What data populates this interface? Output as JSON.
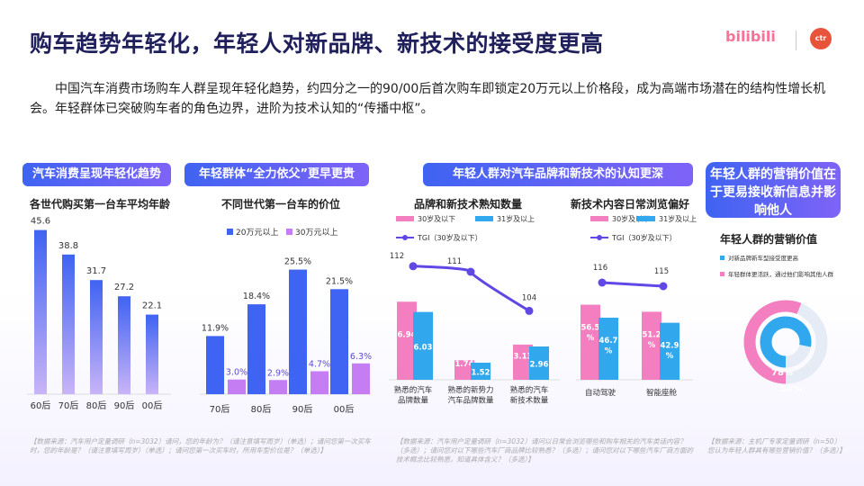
{
  "title": "购车趋势年轻化，年轻人对新品牌、新技术的接受度更高",
  "logos": {
    "bili": "bilibili",
    "ctr": "ctr"
  },
  "intro": "中国汽车消费市场购车人群呈现年轻化趋势，约四分之一的90/00后首次购车即锁定20万元以上价格段，成为高端市场潜在的结构性增长机会。年轻群体已突破购车者的角色边界，进阶为技术认知的“传播中枢”。",
  "sections": {
    "s1": "汽车消费呈现年轻化趋势",
    "s2": "年轻群体“全力依父”更早更贵",
    "s3": "年轻人群对汽车品牌和新技术的认知更深",
    "s4": "年轻人群的营销价值在于更易接收新信息并影响他人"
  },
  "sources": {
    "s1": "【数据来源：汽车用户定量调研（n=3032）请问，您的年龄为？（请注意填写周岁）（单选）；请问您第一次买车时，您的年龄是？（请注意填写周岁）（单选）；请问您第一次买车时，所用车型价位是？（单选）】",
    "s2": "【数据来源：汽车用户定量调研（n=3032）请问以日常会浏览哪些和购车相关的汽车类话内容？（多选）；请问您对以下哪些汽车厂商品牌比较熟悉？（多选）；请问您对以下哪些汽车厂商方面的技术概念比较熟悉，知道具体含义？（多选）】",
    "s3": "【数据来源：主机厂专家定量调研（n=50）您认为年轻人群具有哪些营销价值？（多选）】"
  },
  "chart_data": [
    {
      "type": "bar",
      "title": "各世代购买第一台车平均年龄",
      "categories": [
        "60后",
        "70后",
        "80后",
        "90后",
        "00后"
      ],
      "values": [
        45.6,
        38.8,
        31.7,
        27.2,
        22.1
      ],
      "ylim": [
        0,
        50
      ],
      "colors": {
        "top": "#3f63f2",
        "bottom": "#c9b4f7"
      }
    },
    {
      "type": "bar",
      "title": "不同世代第一台车的价位",
      "categories": [
        "70后",
        "80后",
        "90后",
        "00后"
      ],
      "series": [
        {
          "name": "20万元以上",
          "values": [
            11.9,
            18.4,
            25.5,
            21.5
          ],
          "labels": [
            "11.9%",
            "18.4%",
            "25.5%",
            "21.5%"
          ],
          "color": "#3f63f2"
        },
        {
          "name": "30万元以上",
          "values": [
            3.0,
            2.9,
            4.7,
            6.3
          ],
          "labels": [
            "3.0%",
            "2.9%",
            "4.7%",
            "6.3%"
          ],
          "color": "#c57df3"
        }
      ],
      "ylim": [
        0,
        28
      ]
    },
    {
      "type": "bar",
      "title": "品牌和新技术熟知数量",
      "categories": [
        "熟悉的汽车\n品牌数量",
        "熟悉的新势力\n汽车品牌数量",
        "熟悉的汽车\n新技术数量"
      ],
      "series": [
        {
          "name": "30岁及以下",
          "values": [
            6.94,
            1.74,
            3.13
          ],
          "color": "#f47fc0"
        },
        {
          "name": "31岁及以上",
          "values": [
            6.03,
            1.52,
            2.96
          ],
          "color": "#31a7ee"
        }
      ],
      "tgi": {
        "name": "TGI（30岁及以下）",
        "values": [
          112,
          111,
          104
        ],
        "color": "#6048e6"
      },
      "ylim": [
        0,
        8
      ]
    },
    {
      "type": "bar",
      "title": "新技术内容日常浏览偏好",
      "categories": [
        "自动驾驶",
        "智能座舱"
      ],
      "series": [
        {
          "name": "30岁及以下",
          "values": [
            56.5,
            51.2
          ],
          "labels": [
            "56.5\n%",
            "51.2\n%"
          ],
          "color": "#f47fc0"
        },
        {
          "name": "31岁及以上",
          "values": [
            46.7,
            42.9
          ],
          "labels": [
            "46.7\n%",
            "42.9\n%"
          ],
          "color": "#31a7ee"
        }
      ],
      "tgi": {
        "name": "TGI（30岁及以下）",
        "values": [
          116,
          115
        ],
        "color": "#6048e6"
      },
      "ylim": [
        0,
        65
      ]
    },
    {
      "type": "pie",
      "title": "年轻人群的营销价值",
      "series": [
        {
          "name": "对新品牌新车型接受度更高",
          "value": 78,
          "label": "78%",
          "color": "#31a7ee"
        },
        {
          "name": "年轻群体更活跃，通过他们影响其他人群",
          "value": 56,
          "label": "56%",
          "color": "#f47fc0"
        }
      ]
    }
  ]
}
